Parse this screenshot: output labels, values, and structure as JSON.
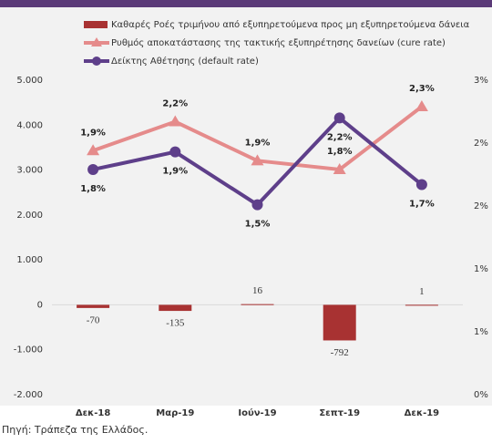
{
  "chart_data": {
    "type": "bar_line",
    "categories": [
      "Δεκ-18",
      "Μαρ-19",
      "Ιούν-19",
      "Σεπτ-19",
      "Δεκ-19"
    ],
    "series": [
      {
        "name": "Καθαρές Ροές τριμήνου από εξυπηρετούμενα προς μη εξυπηρετούμενα δάνεια",
        "type": "bar",
        "color": "#a83232",
        "values": [
          -70,
          -135,
          16,
          -792,
          1
        ]
      },
      {
        "name": "Ρυθμός αποκατάστασης της τακτικής εξυπηρέτησης δανείων (cure rate)",
        "type": "line",
        "marker": "triangle",
        "axis": "y2",
        "color": "#e58b8b",
        "values": [
          1.94,
          2.17,
          1.86,
          1.79,
          2.29
        ],
        "value_labels": [
          "1,9%",
          "2,2%",
          "1,9%",
          "1,8%",
          "2,3%"
        ]
      },
      {
        "name": "Δείκτης Αθέτησης (default rate)",
        "type": "line",
        "marker": "circle",
        "axis": "y2",
        "color": "#5e3f8a",
        "values": [
          1.79,
          1.93,
          1.51,
          2.2,
          1.67
        ],
        "value_labels": [
          "1,8%",
          "1,9%",
          "1,5%",
          "2,2%",
          "1,7%"
        ]
      }
    ],
    "ylim": [
      -2000,
      5000
    ],
    "yticks": [
      {
        "value": -2000,
        "label": "-2.000"
      },
      {
        "value": -1000,
        "label": "-1.000"
      },
      0,
      {
        "value": 1000,
        "label": "1.000"
      },
      {
        "value": 2000,
        "label": "2.000"
      },
      {
        "value": 3000,
        "label": "3.000"
      },
      {
        "value": 4000,
        "label": "4.000"
      },
      {
        "value": 5000,
        "label": "5.000"
      }
    ],
    "y2lim": [
      0,
      2.5
    ],
    "y2ticks": [
      {
        "value": 0,
        "label": "0%"
      },
      {
        "value": 0.5,
        "label": "1%"
      },
      {
        "value": 1,
        "label": "1%"
      },
      {
        "value": 1.5,
        "label": "2%"
      },
      {
        "value": 2,
        "label": "2%"
      },
      {
        "value": 2.5,
        "label": "3%"
      }
    ],
    "grid": false,
    "source": "Πηγή: Τράπεζα της Ελλάδος."
  }
}
